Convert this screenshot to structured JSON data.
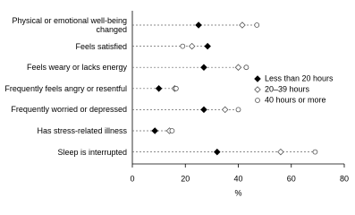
{
  "chart_data": {
    "type": "dot",
    "categories": [
      "Physical or emotional well-being changed",
      "Feels satisfied",
      "Feels weary or lacks energy",
      "Frequently feels angry or resentful",
      "Frequently worried or depressed",
      "Has stress-related illness",
      "Sleep is interrupted"
    ],
    "series": [
      {
        "name": "Less than 20 hours",
        "color": "#000000",
        "marker": "diamond",
        "filled": true,
        "values": [
          25,
          28.4,
          27,
          10,
          27,
          8.5,
          32
        ]
      },
      {
        "name": "20–39 hours",
        "color": "#555555",
        "marker": "diamond",
        "filled": false,
        "values": [
          41.5,
          22.5,
          40,
          16,
          35,
          14,
          56
        ]
      },
      {
        "name": "40 hours or more",
        "color": "#555555",
        "marker": "circle",
        "filled": false,
        "values": [
          47,
          19,
          43,
          16.5,
          40,
          15,
          69
        ]
      }
    ],
    "xlim": [
      0,
      80
    ],
    "xticks": [
      0,
      20,
      40,
      60,
      80
    ],
    "xlabel": "%"
  }
}
